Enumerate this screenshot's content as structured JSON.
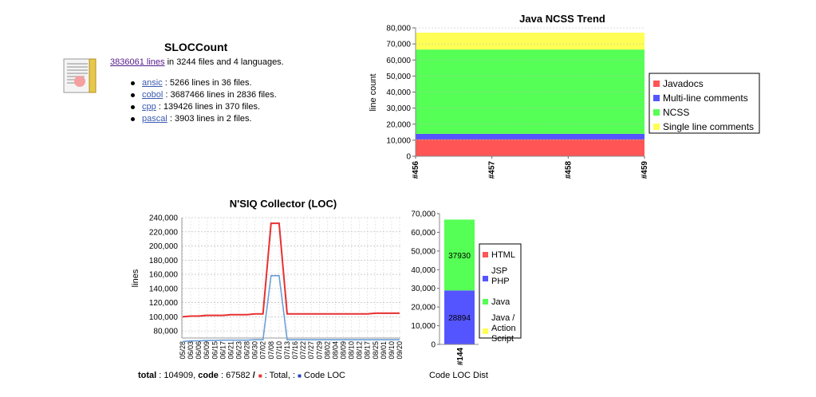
{
  "sloccount": {
    "title": "SLOCCount",
    "total_link": "3836061 lines",
    "total_rest": " in 3244 files and 4 languages.",
    "languages": [
      {
        "name": "ansic",
        "rest": " : 5266 lines in 36 files."
      },
      {
        "name": "cobol",
        "rest": " : 3687466 lines in 2836 files."
      },
      {
        "name": "cpp",
        "rest": " : 139426 lines in 370 files."
      },
      {
        "name": "pascal",
        "rest": " : 3903 lines in 2 files."
      }
    ]
  },
  "chart_data": [
    {
      "type": "area",
      "title": "Java NCSS Trend",
      "ylabel": "line count",
      "xlabel": "",
      "categories": [
        "#456",
        "#457",
        "#458",
        "#459"
      ],
      "ylim": [
        0,
        80000
      ],
      "yticks": [
        "0",
        "10,000",
        "20,000",
        "30,000",
        "40,000",
        "50,000",
        "60,000",
        "70,000",
        "80,000"
      ],
      "stacked": true,
      "legend_position": "right",
      "series": [
        {
          "name": "Javadocs",
          "color": "#ff5555",
          "values": [
            10500,
            10500,
            10500,
            10500
          ]
        },
        {
          "name": "Multi-line comments",
          "color": "#5555ff",
          "values": [
            3500,
            3500,
            3500,
            3500
          ]
        },
        {
          "name": "NCSS",
          "color": "#55ff55",
          "values": [
            52500,
            52500,
            52500,
            52500
          ]
        },
        {
          "name": "Single line comments",
          "color": "#ffff55",
          "values": [
            10500,
            10500,
            10500,
            10500
          ]
        }
      ]
    },
    {
      "type": "line",
      "title": "N'SIQ Collector (LOC)",
      "ylabel": "lines",
      "xlabel": "",
      "ylim": [
        70000,
        240000
      ],
      "yticks": [
        80000,
        100000,
        120000,
        140000,
        160000,
        180000,
        200000,
        220000,
        240000
      ],
      "ytick_labels": [
        "80,000",
        "100,000",
        "120,000",
        "140,000",
        "160,000",
        "180,000",
        "200,000",
        "220,000",
        "240,000"
      ],
      "x": [
        "05/28",
        "06/03",
        "06/06",
        "06/09",
        "06/15",
        "06/17",
        "06/21",
        "06/23",
        "06/28",
        "06/30",
        "07/02",
        "07/08",
        "07/10",
        "07/13",
        "07/16",
        "07/22",
        "07/27",
        "07/29",
        "08/02",
        "08/04",
        "08/09",
        "08/10",
        "08/12",
        "08/17",
        "08/25",
        "09/01",
        "09/10",
        "09/20"
      ],
      "series": [
        {
          "name": "Total",
          "color": "#e83030",
          "values": [
            100000,
            101000,
            101000,
            102000,
            102000,
            102000,
            103000,
            103000,
            103000,
            104000,
            104000,
            232000,
            232000,
            104000,
            104000,
            104000,
            104000,
            104000,
            104000,
            104000,
            104000,
            104000,
            104000,
            104000,
            105000,
            105000,
            105000,
            105000
          ]
        },
        {
          "name": "Code LOC",
          "color": "#6a9fd8",
          "values": [
            65000,
            66000,
            66000,
            66500,
            66500,
            67000,
            67000,
            67000,
            67000,
            67500,
            67500,
            158000,
            158000,
            67500,
            67500,
            67500,
            67500,
            67500,
            67500,
            67500,
            67500,
            67500,
            67500,
            67500,
            67500,
            67500,
            67500,
            67500
          ]
        }
      ],
      "footer": {
        "total_label": "total",
        "total_value": " : 104909, ",
        "code_label": "code",
        "code_value": " : 67582 ",
        "slash": "/",
        "total_legend": " : Total, : ",
        "code_legend": " Code LOC"
      }
    },
    {
      "type": "bar",
      "title": "",
      "xlabel": "Code LOC Dist",
      "ylabel": "",
      "categories": [
        "#144"
      ],
      "ylim": [
        0,
        70000
      ],
      "yticks": [
        "0",
        "10,000",
        "20,000",
        "30,000",
        "40,000",
        "50,000",
        "60,000",
        "70,000"
      ],
      "stacked": true,
      "legend_position": "right",
      "series": [
        {
          "name": "HTML",
          "color": "#ff5555",
          "values": [
            0
          ],
          "label": ""
        },
        {
          "name": "JSP PHP",
          "color": "#5555ff",
          "values": [
            28894
          ],
          "label": "28894"
        },
        {
          "name": "Java",
          "color": "#55ff55",
          "values": [
            37930
          ],
          "label": "37930"
        },
        {
          "name": "Java / Action Script",
          "color": "#ffff55",
          "values": [
            0
          ],
          "label": ""
        }
      ],
      "legend_lines": [
        [
          "HTML"
        ],
        [
          "JSP",
          "PHP"
        ],
        [
          "Java"
        ],
        [
          "Java /",
          "Action",
          "Script"
        ]
      ]
    }
  ]
}
